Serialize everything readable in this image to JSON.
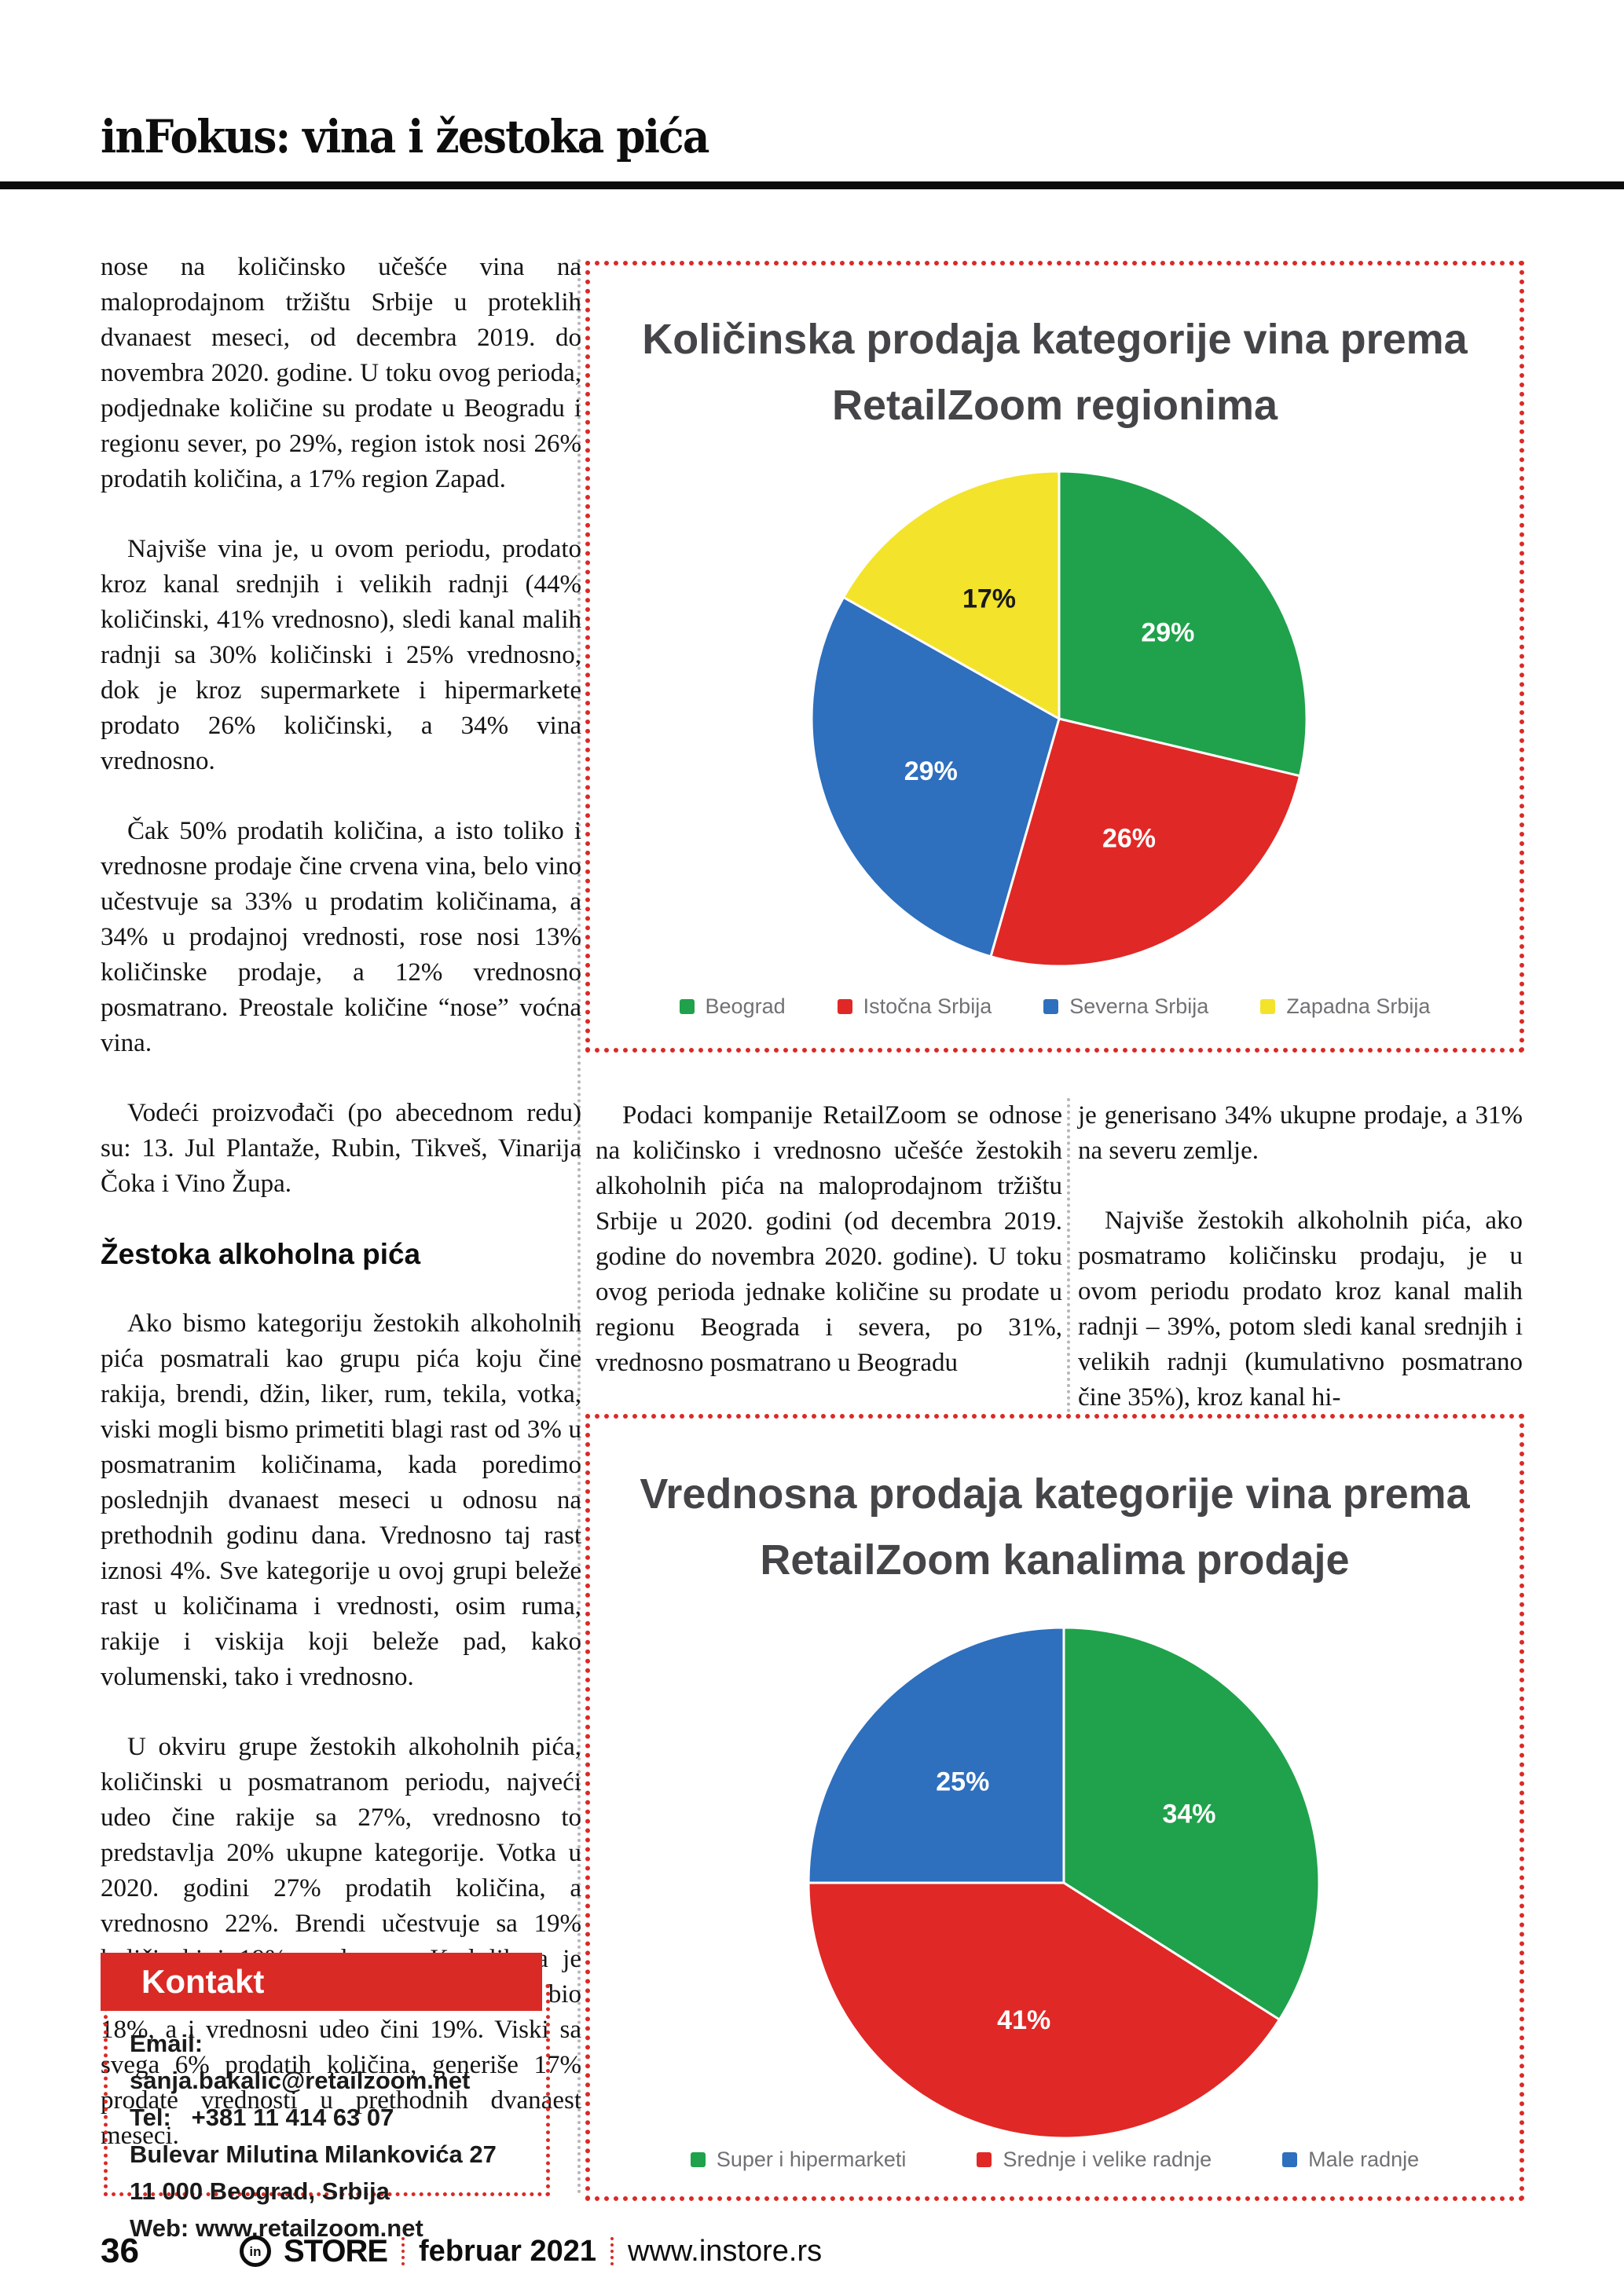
{
  "header": {
    "title": "inFokus: vina i žestoka pića"
  },
  "left_column": {
    "p1": "nose na količinsko učešće vina na maloprodajnom tržištu Srbije u proteklih dvanaest meseci, od decembra 2019. do novembra 2020. godine. U toku ovog perioda, podjednake količine su prodate u Beogradu i regionu sever, po 29%, region istok nosi 26% prodatih količina, a 17% region Zapad.",
    "p2": "Najviše vina je, u ovom periodu, prodato kroz kanal srednjih i velikih radnji (44% količinski, 41% vrednosno), sledi kanal malih radnji sa 30% količinski i 25% vrednosno, dok je kroz supermarkete i hipermarkete prodato 26% količinski, a 34% vina vrednosno.",
    "p3": "Čak 50% prodatih količina, a isto toliko i vrednosne prodaje čine crvena vina, belo vino učestvuje sa 33% u prodatim količinama, a 34% u prodajnoj vrednosti, rose nosi 13% količinske prodaje, a 12% vrednosno posmatrano. Preostale količine “nose” voćna vina.",
    "p4": "Vodeći proizvođači (po abecednom redu) su: 13. Jul Plantaže, Rubin, Tikveš, Vinarija Čoka i Vino Župa.",
    "heading": "Žestoka alkoholna pića",
    "p5": "Ako bismo kategoriju žestokih alkoholnih pića posmatrali kao grupu pića koju čine rakija, brendi, džin, liker, rum, tekila, votka, viski mogli bismo primetiti blagi rast od 3% u posmatranim količinama, kada poredimo poslednjih dvanaest meseci u odnosu na prethodnih godinu dana. Vrednosno taj rast iznosi 4%. Sve kategorije u ovoj grupi beleže rast u količinama i vrednosti, osim ruma, rakije i viskija koji beleže pad, kako volumenski, tako i vrednosno.",
    "p6": "U okviru grupe žestokih alkoholnih pića, količinski u posmatranom periodu, najveći udeo čine rakije sa 27%, vrednosno to predstavlja 20% ukupne kategorije. Votka u 2020. godini 27% prodatih količina, a vrednosno 22%. Brendi učestvuje sa 19% količinski i 19% vrednosno. Kod likera je količinski udeo u proteklih godinu dana bio 18%, a i vrednosni udeo čini 19%. Viski sa svega 6% prodatih količina, generiše 17% prodate vrednosti u prethodnih dvanaest meseci."
  },
  "middle_column": {
    "p1": "Podaci kompanije RetailZoom se odnose na količinsko i vrednosno učešće žestokih alkoholnih pića na maloprodajnom tržištu Srbije u 2020. godini (od decembra 2019. godine do novembra 2020. godine). U toku ovog perioda jednake količine su prodate u regionu Beograda i severa, po 31%, vrednosno posmatrano u Beogradu"
  },
  "right_column": {
    "p1": "je generisano 34% ukupne prodaje, a 31% na severu zemlje.",
    "p2": "Najviše žestokih alkoholnih pića, ako posmatramo količinsku prodaju, je u ovom periodu prodato kroz kanal malih radnji – 39%, potom sledi kanal srednjih i velikih radnji (kumulativno posmatrano čine 35%), kroz kanal hi-"
  },
  "kontakt": {
    "heading": "Kontakt",
    "email_label": "Email:",
    "email_value": "sanja.bakalic@retailzoom.net",
    "tel_label": "Tel:",
    "tel_value": "+381 11 414 63 07",
    "address_line1": "Bulevar Milutina Milankovića 27",
    "address_line2": "11 000 Beograd, Srbija",
    "web_label": "Web:",
    "web_value": "www.retailzoom.net"
  },
  "footer": {
    "page_number": "36",
    "logo_text": "in",
    "brand": "STORE",
    "date": "februar 2021",
    "site": "www.instore.rs"
  },
  "accent_colors": {
    "red": "#da2a26",
    "separator_gray": "#b5b5b5"
  },
  "chart_data": [
    {
      "type": "pie",
      "title": "Količinska prodaja kategorije vina prema RetailZoom regionima",
      "labels": [
        "Beograd",
        "Istočna Srbija",
        "Severna Srbija",
        "Zapadna Srbija"
      ],
      "values": [
        29,
        26,
        29,
        17
      ],
      "colors": [
        "#1fa24b",
        "#e02826",
        "#2e6fbe",
        "#f3e32b"
      ],
      "label_colors": [
        "#ffffff",
        "#ffffff",
        "#ffffff",
        "#1a1a1a"
      ],
      "value_labels": [
        "29%",
        "26%",
        "29%",
        "17%"
      ],
      "legend_position": "bottom",
      "start_angle_deg": 0,
      "direction": "clockwise"
    },
    {
      "type": "pie",
      "title": "Vrednosna prodaja kategorije vina prema RetailZoom kanalima prodaje",
      "labels": [
        "Super i hipermarketi",
        "Srednje i velike radnje",
        "Male radnje"
      ],
      "values": [
        34,
        41,
        25
      ],
      "colors": [
        "#1fa24b",
        "#e02826",
        "#2e6fbe"
      ],
      "label_colors": [
        "#ffffff",
        "#ffffff",
        "#ffffff"
      ],
      "value_labels": [
        "34%",
        "41%",
        "25%"
      ],
      "legend_position": "bottom",
      "start_angle_deg": 0,
      "direction": "clockwise"
    }
  ]
}
